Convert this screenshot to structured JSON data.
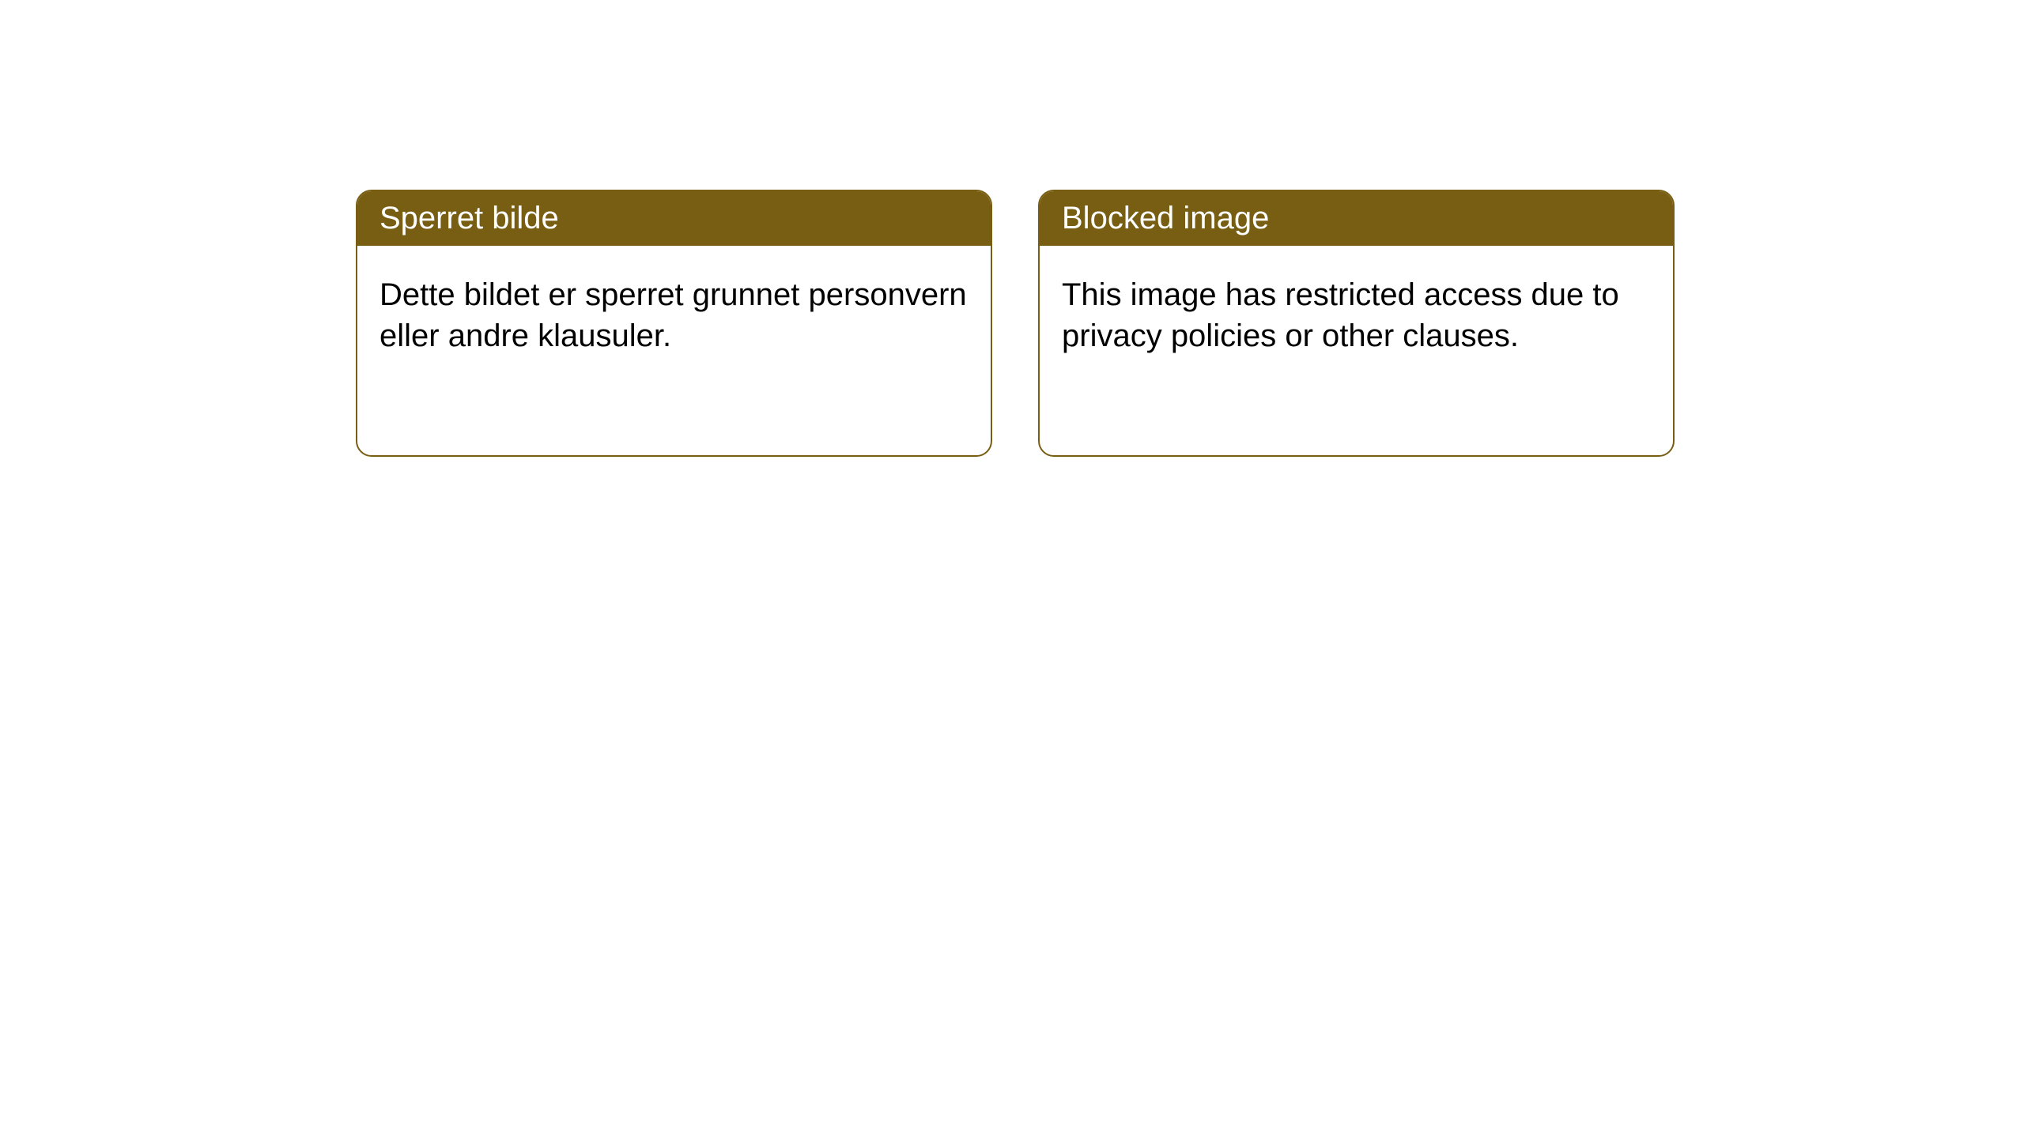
{
  "box_border_color": "#785e12",
  "header_bg_color": "#785e12",
  "header_text_color": "#ffffff",
  "body_text_color": "#000000",
  "background_color": "#ffffff",
  "boxes": [
    {
      "title": "Sperret bilde",
      "body": "Dette bildet er sperret grunnet personvern eller andre klausuler."
    },
    {
      "title": "Blocked image",
      "body": "This image has restricted access due to privacy policies or other clauses."
    }
  ]
}
